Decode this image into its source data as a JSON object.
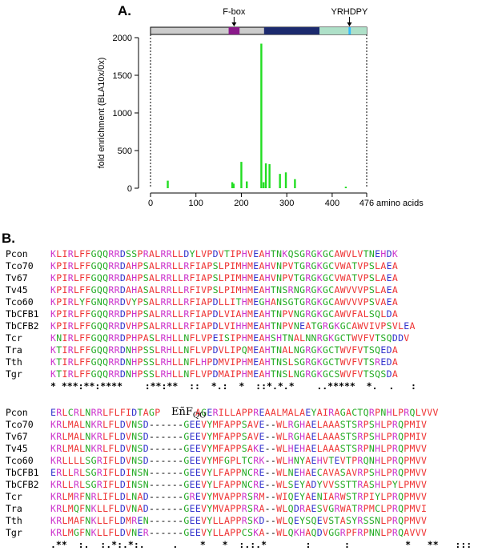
{
  "panel_a_label": "A.",
  "panel_b_label": "B.",
  "chart_data": {
    "type": "bar",
    "ylabel": "fold enrichment (BLA10x/0x)",
    "xlabel": "amino acids",
    "xlim": [
      0,
      476
    ],
    "ylim": [
      0,
      2000
    ],
    "xticks": [
      0,
      100,
      200,
      300,
      400,
      476
    ],
    "yticks": [
      0,
      500,
      1000,
      1500,
      2000
    ],
    "x": [
      38,
      180,
      183,
      200,
      212,
      244,
      249,
      254,
      262,
      285,
      298,
      318,
      430
    ],
    "values": [
      100,
      80,
      60,
      350,
      90,
      1920,
      80,
      330,
      320,
      190,
      210,
      120,
      20
    ],
    "bar_color": "#22dd22",
    "domains": [
      {
        "label": "F-box",
        "color": "#8b1a8b"
      },
      {
        "label": "",
        "color": "#1c2a6e"
      },
      {
        "label": "",
        "color": "#aee0c8"
      },
      {
        "label": "YRHDPY",
        "color": "#33bbff"
      }
    ],
    "domain_bar_bg": "#cccccc"
  },
  "alignment": {
    "colors": {
      "K": "#cc33cc",
      "R": "#cc33cc",
      "H": "#cc33cc",
      "D": "#3333cc",
      "E": "#3333cc",
      "G": "#22aa22",
      "S": "#22aa22",
      "T": "#22aa22",
      "N": "#22aa22",
      "Q": "#22aa22",
      "Y": "#22aa22",
      "C": "#22aa22",
      "A": "#ee3333",
      "V": "#ee3333",
      "L": "#ee3333",
      "I": "#ee3333",
      "M": "#ee3333",
      "F": "#ee3333",
      "P": "#ee3333",
      "W": "#ee3333",
      "-": "#000000",
      "X": "#000000"
    },
    "annotation": "EñF",
    "annotation_sub": "QO",
    "blocks": [
      {
        "rows": [
          {
            "name": "Pcon",
            "seq": "KLIRLFFGQQRRDSSPRALRRLLDYLVPDVTIPHVEAHTNKQSGRGKGCAWVLVTNEHDK"
          },
          {
            "name": "Tco70",
            "seq": "KPIRLFFGQQRRDAHPSALRRLLRFIAPSLPIMHMEAHVNPVTGRGKGCVWATVPSLAEA"
          },
          {
            "name": "Tv67",
            "seq": "KPIRLFFGQQRRDAHPSALRRLLRFIAPSLPIMHMEAHVNPVTGRGKGCVWATVPSLAEA"
          },
          {
            "name": "Tv45",
            "seq": "KPIRLFFGQQRRDAHASALRRLLRFIVPSLPIMHMEAHTNSRNGRGKGCAWVVVPSLAEA"
          },
          {
            "name": "Tco60",
            "seq": "KPIRLYFGNQRRDVYPSALRRLLRFIAPDLLITHMEGHANSGTGRGKGCAWVVVPSVAEA"
          },
          {
            "name": "TbCFB1",
            "seq": "KPIRLFFGQQRRDPHPSALRRLLRFIAPDLVIAHMEAHTNPVNGRGKGCAWVFALSQLDA"
          },
          {
            "name": "TbCFB2",
            "seq": "KPIRLFFGQQRRDVHPSALRRLLRFIAPDLVIHHMEAHTNPVNEATGRGKGCAWVIVPSVLEA"
          },
          {
            "name": "Tcr",
            "seq": "KNIRLFFGQQRRDPHPASLRHLLNFLVPEISIPHMEAHSHTNALNNRGKGCTWVFVTSQDDV"
          },
          {
            "name": "Tra",
            "seq": "KTIRLFFGQQRRDNHPSSLRHLLNFLVPDVLIPQMEAHTNALNGRGKGCTWVFVTSQEDA"
          },
          {
            "name": "Tth",
            "seq": "KTIRLFFGQQRRDNHPSSLRHLLNFLHPDMVIPHMEAHTNSLSGRGKGCTWVFVTSREDA"
          },
          {
            "name": "Tgr",
            "seq": "KTIRLFFGQQRRDNHPSSLRHLLNFLVPDMAIPHMEAHTNSLNGRGKGCSWVFVTSQSDA"
          }
        ],
        "consensus": "* ***:**:****    :**:**  ::  *.:  *  ::*.*.*    ..*****  *.  .   :"
      },
      {
        "rows": [
          {
            "name": "Pcon",
            "seq": "ERLCRLNRRLFLFIDTAGP      AGERILLAPPREAALMALAEYAIRAGACTQRPNHLPRQLVVV"
          },
          {
            "name": "Tco70",
            "seq": "KRLMALNKRLFLDVNSD------GEEVYMFAPPSAVE--WLRGHAELAAASTSRPSHLPRQPMIV"
          },
          {
            "name": "Tv67",
            "seq": "KRLMALNKRLFLDVNSD------GEEVYMFAPPSAVE--WLRGHAELAAASTSRPSHLPRQPMIV"
          },
          {
            "name": "Tv45",
            "seq": "KRLMALNKRLFLDVNSD------GEEVYMFAPPSAKE--WLHEHAELAAASTSRPNHLPRQPMVV"
          },
          {
            "name": "Tco60",
            "seq": "KRLLLLSGRIFLDVNSD------GEEVYMFGPLTCRK--WLHNYAEHVTEVTPRQNHLPRQPMVV"
          },
          {
            "name": "TbCFB1",
            "seq": "ERLLRLSGRIFLDINSN------GEEVYLFAPPNCRE--WLNEHAECAVASAVRPSHLPRQPMVV"
          },
          {
            "name": "TbCFB2",
            "seq": "KRLLRLSGRIFLDINSN------GEEVYLFAPPNCRE--WLSEYADYVVSSTTRASHLPYLPMVV"
          },
          {
            "name": "Tcr",
            "seq": "KRLMRFNRLIFLDLNAD------GREVYMVAPPRSRM--WIQEYAENIARWSTRPIYLPRQPMVV"
          },
          {
            "name": "Tra",
            "seq": "KRLMQFNKLLFLDVNAD------GEEVYMVAPPRSRA--WLQDRAESVGRWATRPMCLPRQPMVI"
          },
          {
            "name": "Tth",
            "seq": "KRLMAFNKLLFLDMREN------GEEVYLLAPPRSKD--WLQEYSQEVSTASYRSSNLPRQPMVV"
          },
          {
            "name": "Tgr",
            "seq": "KRLMGFNKLLFLDVNER------GEEVYLLAPPCSKA--WLQKHAQDVGGRPFRPNNLPRQAVVV"
          }
        ],
        "consensus": ".**  :.  :.*:.*:.     .    *   *  :.:.*       :      :          *   **   :::"
      }
    ]
  }
}
